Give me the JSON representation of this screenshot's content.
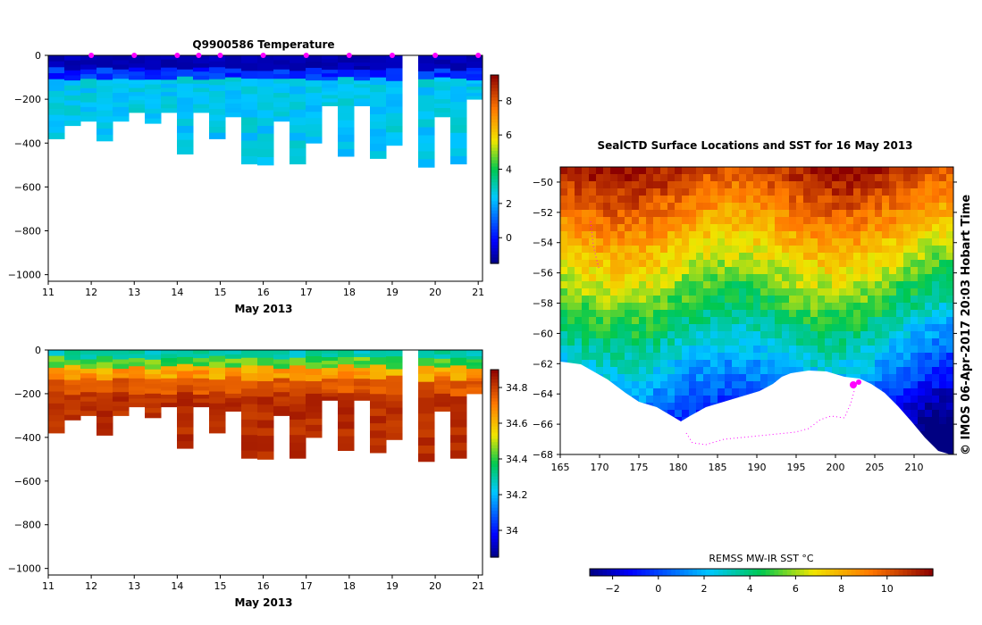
{
  "chart_data": [
    {
      "id": "temp",
      "type": "heatmap",
      "title": "Q9900586  Temperature",
      "xlabel": "May 2013",
      "ylabel": "",
      "xlim": [
        11,
        21.1
      ],
      "ylim": [
        -1030,
        0
      ],
      "x_ticks": [
        11,
        12,
        13,
        14,
        15,
        16,
        17,
        18,
        19,
        20,
        21
      ],
      "y_ticks": [
        0,
        -200,
        -400,
        -600,
        -800,
        -1000
      ],
      "y_tick_labels": [
        "0",
        "−200",
        "−400",
        "−600",
        "−800",
        "−1000"
      ],
      "profile_depths_m": [
        380,
        320,
        300,
        390,
        300,
        260,
        310,
        260,
        450,
        260,
        380,
        280,
        495,
        500,
        300,
        495,
        400,
        230,
        460,
        230,
        470,
        410,
        0,
        510,
        280,
        495,
        200
      ],
      "markers_days": [
        12,
        13,
        14,
        14.5,
        15,
        16,
        17,
        18,
        19,
        20,
        21
      ],
      "colorbar": {
        "min": -1.5,
        "max": 9.5,
        "ticks": [
          0,
          2,
          4,
          6,
          8
        ],
        "tick_labels": [
          "0",
          "2",
          "4",
          "6",
          "8"
        ]
      }
    },
    {
      "id": "sal",
      "type": "heatmap",
      "title": "",
      "xlabel": "May 2013",
      "ylabel": "",
      "xlim": [
        11,
        21.1
      ],
      "ylim": [
        -1030,
        0
      ],
      "x_ticks": [
        11,
        12,
        13,
        14,
        15,
        16,
        17,
        18,
        19,
        20,
        21
      ],
      "y_ticks": [
        0,
        -200,
        -400,
        -600,
        -800,
        -1000
      ],
      "y_tick_labels": [
        "0",
        "−200",
        "−400",
        "−600",
        "−800",
        "−1000"
      ],
      "colorbar": {
        "min": 33.85,
        "max": 34.9,
        "ticks": [
          34,
          34.2,
          34.4,
          34.6,
          34.8
        ],
        "tick_labels": [
          "34",
          "34.2",
          "34.4",
          "34.6",
          "34.8"
        ]
      }
    },
    {
      "id": "map",
      "type": "heatmap",
      "title": "SealCTD Surface Locations and SST for 16 May 2013",
      "xlabel": "",
      "ylabel": "",
      "xlim": [
        165,
        215
      ],
      "ylim": [
        -68,
        -49
      ],
      "x_ticks": [
        165,
        170,
        175,
        180,
        185,
        190,
        195,
        200,
        205,
        210
      ],
      "y_ticks": [
        -50,
        -52,
        -54,
        -56,
        -58,
        -60,
        -62,
        -64,
        -66,
        -68
      ],
      "y_tick_labels": [
        "−50",
        "−52",
        "−54",
        "−56",
        "−58",
        "−60",
        "−62",
        "−64",
        "−66",
        "−68"
      ],
      "colorbar": {
        "label": "REMSS MW-IR SST °C",
        "min": -3,
        "max": 12,
        "ticks": [
          -2,
          0,
          2,
          4,
          6,
          8,
          10
        ],
        "tick_labels": [
          "−2",
          "0",
          "2",
          "4",
          "6",
          "8",
          "10"
        ]
      }
    }
  ],
  "credit": "©  IMOS 06-Apr-2017 20:03 Hobart Time",
  "colors": {
    "marker": "#ff00ff",
    "land": "#ffffff",
    "frame": "#000000"
  }
}
